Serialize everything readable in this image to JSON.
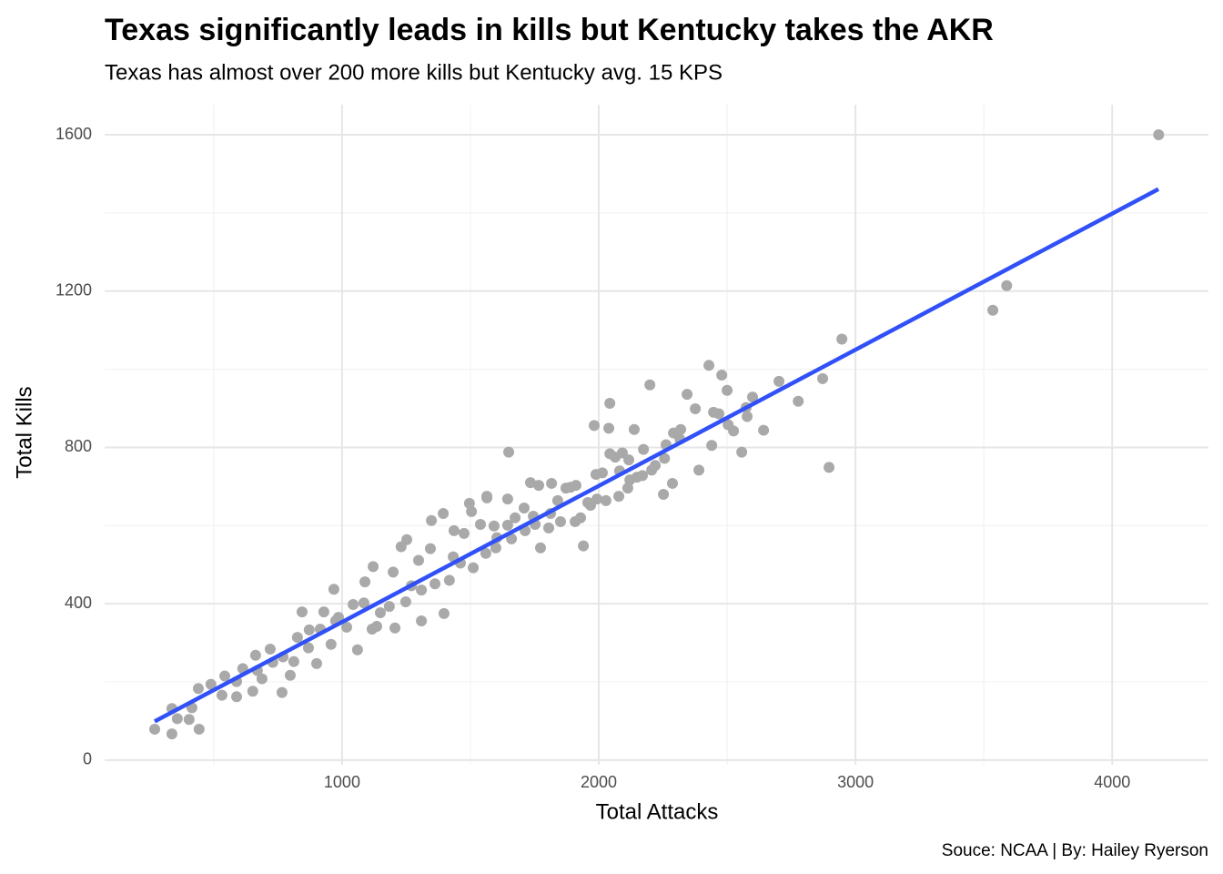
{
  "chart_data": {
    "type": "scatter",
    "title": "Texas significantly leads in kills but Kentucky takes the AKR",
    "subtitle": "Texas has almost over 200 more kills but Kentucky avg. 15 KPS",
    "caption": "Souce: NCAA | By: Hailey Ryerson",
    "x_label": "Total Attacks",
    "y_label": "Total Kills",
    "color": "#a9a9a9",
    "x": [
      4181,
      3589,
      3535,
      2947,
      2897,
      2872,
      2777,
      2702,
      2642,
      2599,
      2578,
      2557,
      2525,
      2500,
      2479,
      2447,
      2429,
      2390,
      2376,
      2344,
      2440,
      2319,
      2252,
      2287,
      2199,
      2138,
      2113,
      2117,
      2081,
      2043,
      2039,
      1982,
      1993,
      2014,
      1957,
      1940,
      1890,
      1816,
      1745,
      1773,
      1649,
      1645,
      1592,
      1564,
      1504,
      1397,
      1309,
      1206,
      1117,
      1060,
      957,
      901,
      766,
      652,
      443,
      404,
      337,
      270,
      337,
      358,
      415,
      440,
      489,
      532,
      543,
      589,
      613,
      663,
      688,
      720,
      770,
      812,
      826,
      844,
      869,
      915,
      929,
      968,
      986,
      1043,
      1089,
      1121,
      1149,
      1199,
      1230,
      1252,
      1270,
      1298,
      1344,
      1348,
      1394,
      1433,
      1436,
      1475,
      1496,
      1539,
      1564,
      1599,
      1645,
      1674,
      1709,
      1734,
      1766,
      1812,
      1840,
      1872,
      1911,
      1929,
      1965,
      1989,
      2043,
      2064,
      2092,
      2149,
      2174,
      2220,
      2256,
      2316,
      2291,
      2468,
      2504,
      2574,
      670,
      589,
      730,
      798,
      872,
      975,
      1018,
      1085,
      1135,
      1184,
      1248,
      1309,
      1362,
      1418,
      1461,
      1511,
      1560,
      1603,
      1660,
      1713,
      1752,
      1805,
      1851,
      1908,
      1968,
      2028,
      2078,
      2121,
      2170,
      2206,
      2262
    ],
    "values": [
      1600,
      1214,
      1151,
      1077,
      749,
      976,
      918,
      969,
      844,
      929,
      879,
      788,
      842,
      946,
      985,
      890,
      1010,
      742,
      899,
      936,
      805,
      846,
      680,
      708,
      960,
      846,
      696,
      768,
      740,
      913,
      849,
      856,
      668,
      735,
      659,
      548,
      698,
      708,
      624,
      543,
      788,
      668,
      599,
      671,
      636,
      375,
      356,
      338,
      335,
      282,
      296,
      247,
      173,
      176,
      79,
      104,
      67,
      79,
      132,
      106,
      134,
      183,
      194,
      166,
      215,
      201,
      234,
      268,
      208,
      284,
      264,
      252,
      314,
      379,
      287,
      335,
      379,
      437,
      365,
      398,
      456,
      495,
      377,
      481,
      546,
      564,
      446,
      511,
      541,
      613,
      631,
      520,
      587,
      580,
      657,
      603,
      675,
      543,
      601,
      620,
      645,
      710,
      703,
      631,
      664,
      696,
      703,
      620,
      657,
      731,
      784,
      775,
      786,
      724,
      795,
      754,
      772,
      821,
      837,
      886,
      858,
      902,
      229,
      162,
      250,
      217,
      333,
      356,
      340,
      402,
      342,
      393,
      405,
      435,
      451,
      460,
      504,
      492,
      529,
      569,
      566,
      587,
      603,
      594,
      610,
      610,
      652,
      664,
      675,
      717,
      728,
      742,
      807
    ],
    "fit": {
      "x": [
        270,
        4180
      ],
      "values": [
        99,
        1461
      ],
      "color": "#3050f8"
    },
    "xlim": [
      75,
      4375
    ],
    "ylim": [
      -12,
      1677
    ],
    "xticks": [
      1000,
      2000,
      3000,
      4000
    ],
    "yticks": [
      0,
      400,
      800,
      1200,
      1600
    ],
    "x_minor_ticks": [
      500,
      1500,
      2500,
      3500
    ],
    "y_minor_ticks": [
      200,
      600,
      1000,
      1400
    ],
    "grid": true
  }
}
